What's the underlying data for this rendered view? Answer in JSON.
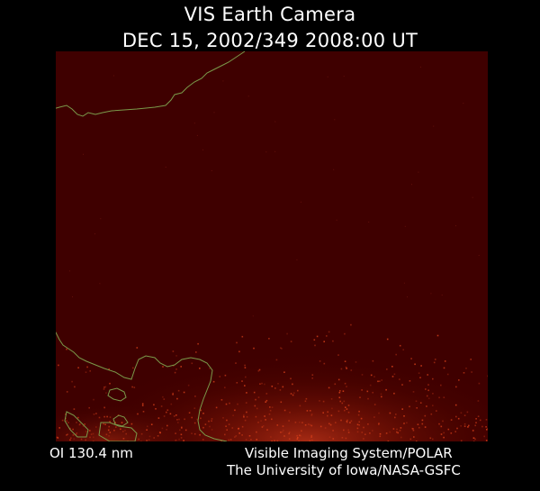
{
  "header": {
    "instrument": "VIS Earth Camera",
    "timestamp": "DEC 15, 2002/349 2008:00 UT"
  },
  "footer": {
    "wavelength": "OI  130.4 nm",
    "credit_line1": "Visible Imaging System/POLAR",
    "credit_line2": "The University of Iowa/NASA-GSFC"
  },
  "image": {
    "background_color": "#3f0000",
    "coastline_color": "#7a9a4a",
    "aurora_color": "#d8401a"
  }
}
